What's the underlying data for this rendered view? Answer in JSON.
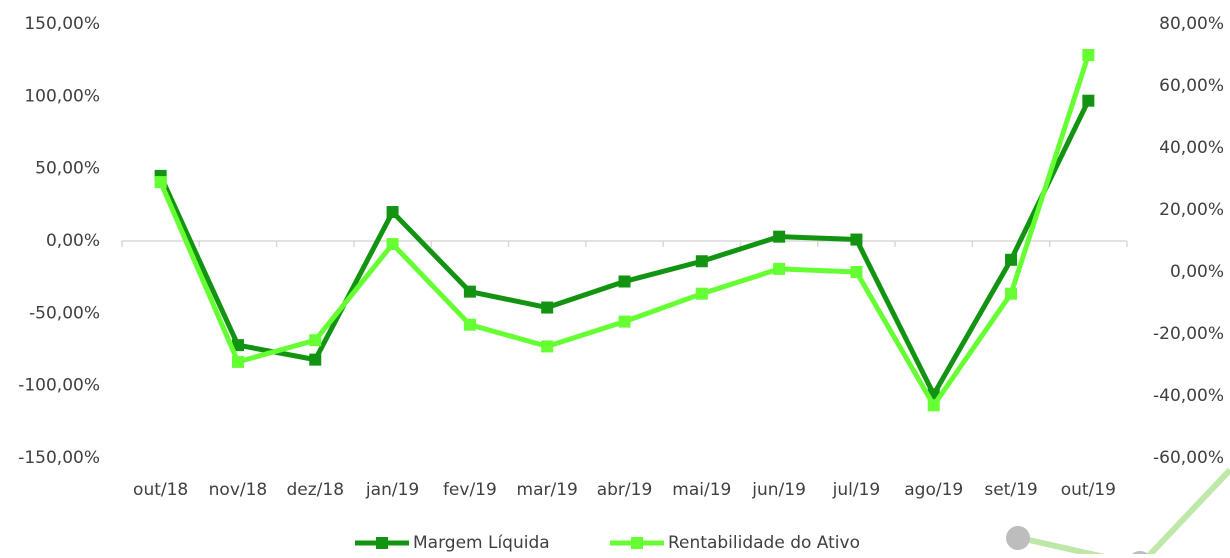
{
  "chart_data": {
    "type": "line",
    "categories": [
      "out/18",
      "nov/18",
      "dez/18",
      "jan/19",
      "fev/19",
      "mar/19",
      "abr/19",
      "mai/19",
      "jun/19",
      "jul/19",
      "ago/19",
      "set/19",
      "out/19"
    ],
    "series": [
      {
        "name": "Margem Líquida",
        "color": "#129412",
        "values": [
          45,
          -72,
          -82,
          20,
          -35,
          -46,
          -28,
          -14,
          3,
          1,
          -106,
          -13,
          97
        ]
      },
      {
        "name": "Rentabilidade do Ativo",
        "color": "#66ff33",
        "axis": "y2",
        "values": [
          29,
          -29,
          -22,
          9,
          -17,
          -24,
          -16,
          -7,
          1,
          0,
          -43,
          -7,
          70
        ]
      }
    ],
    "ylim": [
      -150,
      150
    ],
    "yticks": [
      {
        "value": -150,
        "label": "-150,00%"
      },
      {
        "value": -100,
        "label": "-100,00%"
      },
      {
        "value": -50,
        "label": "-50,00%"
      },
      {
        "value": 0,
        "label": "0,00%"
      },
      {
        "value": 50,
        "label": "50,00%"
      },
      {
        "value": 100,
        "label": "100,00%"
      },
      {
        "value": 150,
        "label": "150,00%"
      }
    ],
    "y2lim": [
      -60,
      80
    ],
    "y2ticks": [
      {
        "value": -60,
        "label": "-60,00%"
      },
      {
        "value": -40,
        "label": "-40,00%"
      },
      {
        "value": -20,
        "label": "-20,00%"
      },
      {
        "value": 0,
        "label": "0,00%"
      },
      {
        "value": 20,
        "label": "20,00%"
      },
      {
        "value": 40,
        "label": "40,00%"
      },
      {
        "value": 60,
        "label": "60,00%"
      },
      {
        "value": 80,
        "label": "80,00%"
      }
    ],
    "legend": "bottom"
  }
}
